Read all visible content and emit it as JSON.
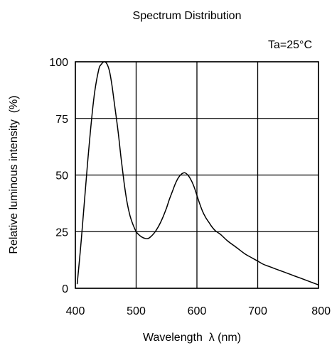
{
  "chart_data": {
    "type": "line",
    "title": "Spectrum Distribution",
    "annotation": "Ta=25°C",
    "xlabel": "Wavelength  λ (nm)",
    "ylabel": "Relative luminous intensity  (%)",
    "xlim": [
      400,
      800
    ],
    "ylim": [
      0,
      100
    ],
    "xticks": [
      400,
      500,
      600,
      700,
      800
    ],
    "yticks": [
      0,
      25,
      50,
      75,
      100
    ],
    "xtick_labels": [
      "400",
      "500",
      "600",
      "700",
      "800"
    ],
    "ytick_labels": [
      "0",
      "25",
      "50",
      "75",
      "100"
    ],
    "grid": true,
    "series": [
      {
        "color": "#000000",
        "x": [
          403,
          410,
          420,
          430,
          438,
          443,
          448,
          452,
          456,
          460,
          465,
          470,
          475,
          480,
          485,
          490,
          495,
          500,
          505,
          510,
          515,
          520,
          525,
          530,
          535,
          540,
          545,
          550,
          555,
          560,
          565,
          570,
          575,
          580,
          585,
          590,
          595,
          600,
          605,
          610,
          615,
          620,
          625,
          630,
          635,
          640,
          650,
          660,
          670,
          680,
          690,
          700,
          710,
          720,
          730,
          740,
          750,
          760,
          770,
          780,
          790,
          800
        ],
        "y": [
          2,
          22,
          55,
          83,
          96,
          99,
          100,
          99,
          96,
          90,
          80,
          70,
          58,
          47,
          38,
          32,
          28,
          25,
          23.5,
          22.5,
          22,
          22,
          23,
          24.5,
          26.5,
          29,
          32,
          35.5,
          39.5,
          43,
          46.5,
          49,
          50.5,
          51,
          50,
          48,
          45,
          41,
          37,
          33.5,
          31,
          29,
          27,
          25.5,
          24.5,
          23.5,
          21,
          19,
          17,
          15,
          13.5,
          12,
          10.5,
          9.5,
          8.5,
          7.5,
          6.5,
          5.5,
          4.5,
          3.5,
          2.5,
          1.5
        ]
      }
    ]
  }
}
